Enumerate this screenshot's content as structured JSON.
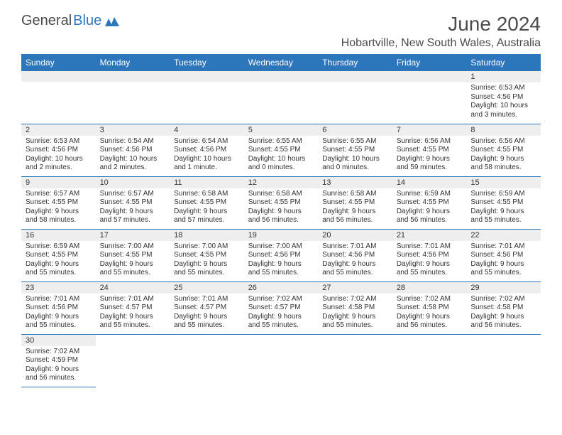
{
  "logo": {
    "dark": "General",
    "blue": "Blue"
  },
  "title": "June 2024",
  "location": "Hobartville, New South Wales, Australia",
  "colors": {
    "header_bg": "#2d76bb",
    "daynum_bg": "#eeeeee",
    "border": "#2d76bb",
    "text": "#333333",
    "logo_dark": "#494b4d",
    "logo_blue": "#2d76bb"
  },
  "weekdays": [
    "Sunday",
    "Monday",
    "Tuesday",
    "Wednesday",
    "Thursday",
    "Friday",
    "Saturday"
  ],
  "weeks": [
    [
      {
        "day": "",
        "lines": []
      },
      {
        "day": "",
        "lines": []
      },
      {
        "day": "",
        "lines": []
      },
      {
        "day": "",
        "lines": []
      },
      {
        "day": "",
        "lines": []
      },
      {
        "day": "",
        "lines": []
      },
      {
        "day": "1",
        "lines": [
          "Sunrise: 6:53 AM",
          "Sunset: 4:56 PM",
          "Daylight: 10 hours",
          "and 3 minutes."
        ]
      }
    ],
    [
      {
        "day": "2",
        "lines": [
          "Sunrise: 6:53 AM",
          "Sunset: 4:56 PM",
          "Daylight: 10 hours",
          "and 2 minutes."
        ]
      },
      {
        "day": "3",
        "lines": [
          "Sunrise: 6:54 AM",
          "Sunset: 4:56 PM",
          "Daylight: 10 hours",
          "and 2 minutes."
        ]
      },
      {
        "day": "4",
        "lines": [
          "Sunrise: 6:54 AM",
          "Sunset: 4:56 PM",
          "Daylight: 10 hours",
          "and 1 minute."
        ]
      },
      {
        "day": "5",
        "lines": [
          "Sunrise: 6:55 AM",
          "Sunset: 4:55 PM",
          "Daylight: 10 hours",
          "and 0 minutes."
        ]
      },
      {
        "day": "6",
        "lines": [
          "Sunrise: 6:55 AM",
          "Sunset: 4:55 PM",
          "Daylight: 10 hours",
          "and 0 minutes."
        ]
      },
      {
        "day": "7",
        "lines": [
          "Sunrise: 6:56 AM",
          "Sunset: 4:55 PM",
          "Daylight: 9 hours",
          "and 59 minutes."
        ]
      },
      {
        "day": "8",
        "lines": [
          "Sunrise: 6:56 AM",
          "Sunset: 4:55 PM",
          "Daylight: 9 hours",
          "and 58 minutes."
        ]
      }
    ],
    [
      {
        "day": "9",
        "lines": [
          "Sunrise: 6:57 AM",
          "Sunset: 4:55 PM",
          "Daylight: 9 hours",
          "and 58 minutes."
        ]
      },
      {
        "day": "10",
        "lines": [
          "Sunrise: 6:57 AM",
          "Sunset: 4:55 PM",
          "Daylight: 9 hours",
          "and 57 minutes."
        ]
      },
      {
        "day": "11",
        "lines": [
          "Sunrise: 6:58 AM",
          "Sunset: 4:55 PM",
          "Daylight: 9 hours",
          "and 57 minutes."
        ]
      },
      {
        "day": "12",
        "lines": [
          "Sunrise: 6:58 AM",
          "Sunset: 4:55 PM",
          "Daylight: 9 hours",
          "and 56 minutes."
        ]
      },
      {
        "day": "13",
        "lines": [
          "Sunrise: 6:58 AM",
          "Sunset: 4:55 PM",
          "Daylight: 9 hours",
          "and 56 minutes."
        ]
      },
      {
        "day": "14",
        "lines": [
          "Sunrise: 6:59 AM",
          "Sunset: 4:55 PM",
          "Daylight: 9 hours",
          "and 56 minutes."
        ]
      },
      {
        "day": "15",
        "lines": [
          "Sunrise: 6:59 AM",
          "Sunset: 4:55 PM",
          "Daylight: 9 hours",
          "and 55 minutes."
        ]
      }
    ],
    [
      {
        "day": "16",
        "lines": [
          "Sunrise: 6:59 AM",
          "Sunset: 4:55 PM",
          "Daylight: 9 hours",
          "and 55 minutes."
        ]
      },
      {
        "day": "17",
        "lines": [
          "Sunrise: 7:00 AM",
          "Sunset: 4:55 PM",
          "Daylight: 9 hours",
          "and 55 minutes."
        ]
      },
      {
        "day": "18",
        "lines": [
          "Sunrise: 7:00 AM",
          "Sunset: 4:55 PM",
          "Daylight: 9 hours",
          "and 55 minutes."
        ]
      },
      {
        "day": "19",
        "lines": [
          "Sunrise: 7:00 AM",
          "Sunset: 4:56 PM",
          "Daylight: 9 hours",
          "and 55 minutes."
        ]
      },
      {
        "day": "20",
        "lines": [
          "Sunrise: 7:01 AM",
          "Sunset: 4:56 PM",
          "Daylight: 9 hours",
          "and 55 minutes."
        ]
      },
      {
        "day": "21",
        "lines": [
          "Sunrise: 7:01 AM",
          "Sunset: 4:56 PM",
          "Daylight: 9 hours",
          "and 55 minutes."
        ]
      },
      {
        "day": "22",
        "lines": [
          "Sunrise: 7:01 AM",
          "Sunset: 4:56 PM",
          "Daylight: 9 hours",
          "and 55 minutes."
        ]
      }
    ],
    [
      {
        "day": "23",
        "lines": [
          "Sunrise: 7:01 AM",
          "Sunset: 4:56 PM",
          "Daylight: 9 hours",
          "and 55 minutes."
        ]
      },
      {
        "day": "24",
        "lines": [
          "Sunrise: 7:01 AM",
          "Sunset: 4:57 PM",
          "Daylight: 9 hours",
          "and 55 minutes."
        ]
      },
      {
        "day": "25",
        "lines": [
          "Sunrise: 7:01 AM",
          "Sunset: 4:57 PM",
          "Daylight: 9 hours",
          "and 55 minutes."
        ]
      },
      {
        "day": "26",
        "lines": [
          "Sunrise: 7:02 AM",
          "Sunset: 4:57 PM",
          "Daylight: 9 hours",
          "and 55 minutes."
        ]
      },
      {
        "day": "27",
        "lines": [
          "Sunrise: 7:02 AM",
          "Sunset: 4:58 PM",
          "Daylight: 9 hours",
          "and 55 minutes."
        ]
      },
      {
        "day": "28",
        "lines": [
          "Sunrise: 7:02 AM",
          "Sunset: 4:58 PM",
          "Daylight: 9 hours",
          "and 56 minutes."
        ]
      },
      {
        "day": "29",
        "lines": [
          "Sunrise: 7:02 AM",
          "Sunset: 4:58 PM",
          "Daylight: 9 hours",
          "and 56 minutes."
        ]
      }
    ],
    [
      {
        "day": "30",
        "lines": [
          "Sunrise: 7:02 AM",
          "Sunset: 4:59 PM",
          "Daylight: 9 hours",
          "and 56 minutes."
        ]
      },
      {
        "day": "",
        "lines": []
      },
      {
        "day": "",
        "lines": []
      },
      {
        "day": "",
        "lines": []
      },
      {
        "day": "",
        "lines": []
      },
      {
        "day": "",
        "lines": []
      },
      {
        "day": "",
        "lines": []
      }
    ]
  ]
}
